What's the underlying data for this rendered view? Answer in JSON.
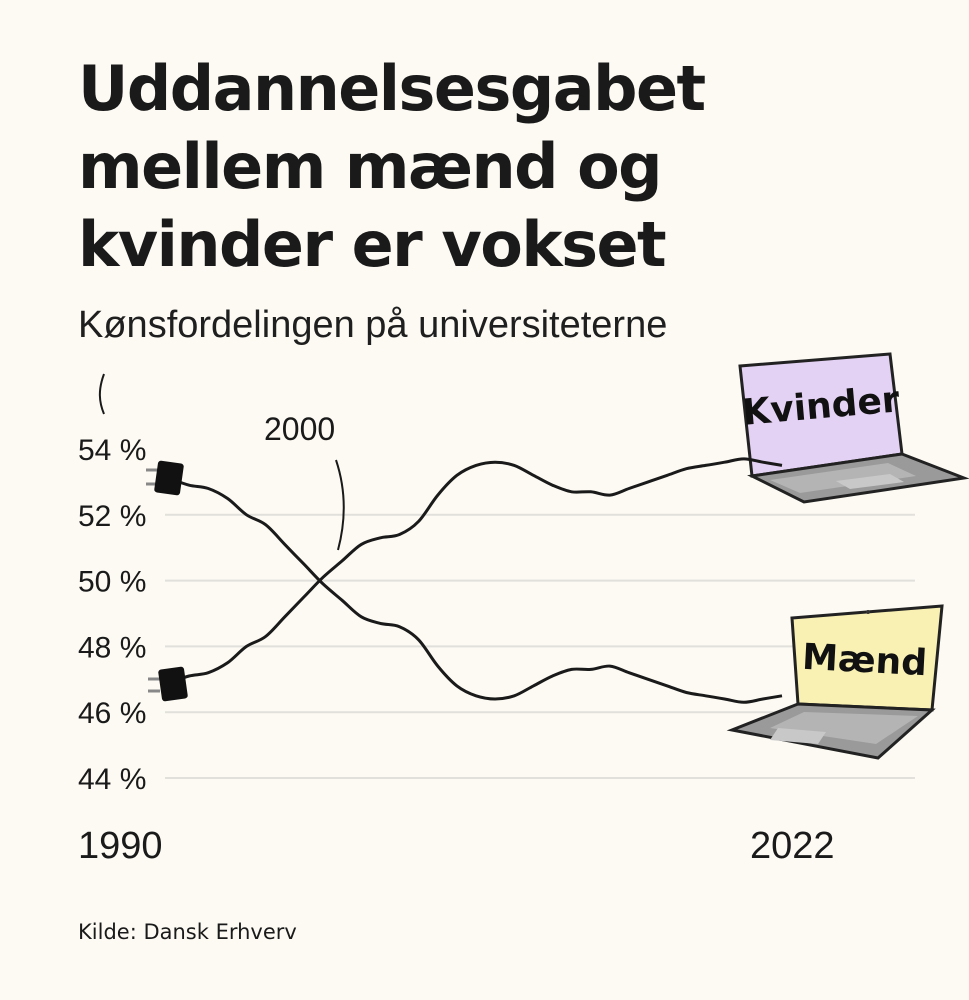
{
  "title_lines": [
    "Uddannelsesgabet",
    "mellem mænd og",
    "kvinder er vokset"
  ],
  "subtitle": "Kønsfordelingen på universiteterne",
  "source": "Kilde: Dansk Erhverv",
  "chart_data": {
    "type": "line",
    "x": [
      1990,
      1991,
      1992,
      1993,
      1994,
      1995,
      1996,
      1997,
      1998,
      1999,
      2000,
      2001,
      2002,
      2003,
      2004,
      2005,
      2006,
      2007,
      2008,
      2009,
      2010,
      2011,
      2012,
      2013,
      2014,
      2015,
      2016,
      2017,
      2018,
      2019,
      2020,
      2021,
      2022
    ],
    "series": [
      {
        "name": "Kvinder",
        "color": "#1a1a1a",
        "values": [
          46.9,
          47.1,
          47.2,
          47.5,
          48.0,
          48.3,
          48.9,
          49.5,
          50.1,
          50.6,
          51.1,
          51.3,
          51.4,
          51.8,
          52.6,
          53.2,
          53.5,
          53.6,
          53.5,
          53.2,
          52.9,
          52.7,
          52.7,
          52.6,
          52.8,
          53.0,
          53.2,
          53.4,
          53.5,
          53.6,
          53.7,
          53.6,
          53.5
        ]
      },
      {
        "name": "Mænd",
        "color": "#1a1a1a",
        "values": [
          53.1,
          52.9,
          52.8,
          52.5,
          52.0,
          51.7,
          51.1,
          50.5,
          49.9,
          49.4,
          48.9,
          48.7,
          48.6,
          48.2,
          47.4,
          46.8,
          46.5,
          46.4,
          46.5,
          46.8,
          47.1,
          47.3,
          47.3,
          47.4,
          47.2,
          47.0,
          46.8,
          46.6,
          46.5,
          46.4,
          46.3,
          46.4,
          46.5
        ]
      }
    ],
    "y_ticks": [
      "54 %",
      "52 %",
      "50 %",
      "48 %",
      "46 %",
      "44 %"
    ],
    "y_tick_values": [
      54,
      52,
      50,
      48,
      46,
      44
    ],
    "ylim": [
      44,
      54
    ],
    "x_tick_labels": [
      "1990",
      "2022"
    ],
    "grid": true,
    "annotation": {
      "label": "2000"
    },
    "laptop_labels": {
      "kvinder": "Kvinder",
      "maend": "Mænd"
    },
    "colors": {
      "kvinder_screen": "#e4d2f4",
      "maend_screen": "#f9f1b3",
      "laptop_body": "#9a9a9a",
      "grid": "#e2e0da",
      "background": "#fcfaf3"
    }
  }
}
